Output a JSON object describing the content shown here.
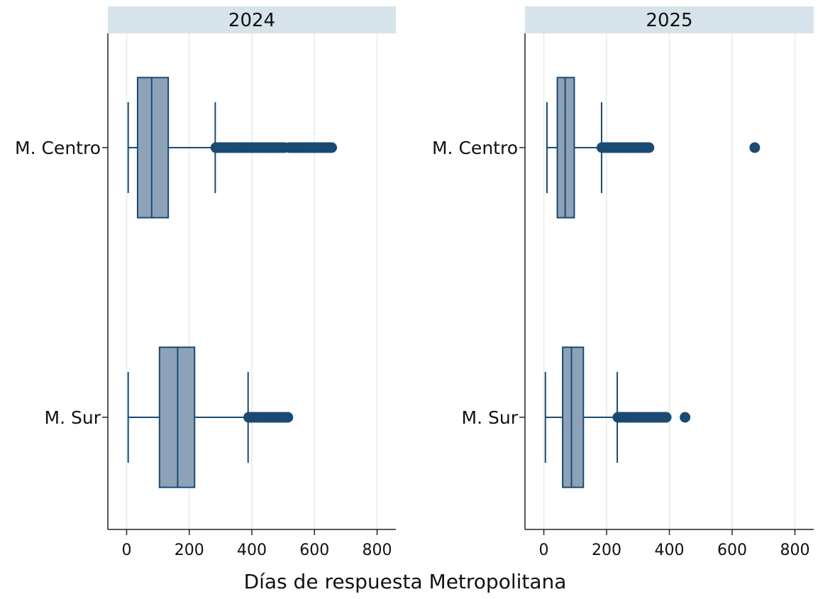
{
  "chart_data": {
    "type": "boxplot",
    "xlabel": "Días de respuesta Metropolitana",
    "x_ticks": [
      0,
      200,
      400,
      600,
      800
    ],
    "xlim": [
      -60,
      860
    ],
    "grid": "vertical",
    "categories": [
      "M. Centro",
      "M. Sur"
    ],
    "colors": {
      "box_fill": "#8da2b8",
      "stroke": "#1a4a72",
      "outlier": "#1a4a72",
      "strip": "#d6e3ea",
      "grid": "#e3ecec",
      "axis": "#222222"
    },
    "panels": [
      {
        "title": "2024",
        "boxes": [
          {
            "category": "M. Centro",
            "whisker_low": 5,
            "q1": 35,
            "median": 80,
            "q3": 133,
            "whisker_high": 283,
            "outliers": [
              285,
              290,
              295,
              300,
              305,
              310,
              315,
              320,
              325,
              330,
              335,
              340,
              345,
              350,
              355,
              360,
              365,
              370,
              375,
              380,
              385,
              390,
              395,
              400,
              405,
              410,
              415,
              420,
              425,
              430,
              435,
              440,
              445,
              450,
              455,
              460,
              465,
              470,
              475,
              480,
              485,
              490,
              495,
              500,
              505,
              520,
              525,
              530,
              535,
              540,
              545,
              550,
              555,
              560,
              565,
              570,
              575,
              580,
              585,
              590,
              595,
              600,
              605,
              610,
              615,
              620,
              625,
              630,
              635,
              640,
              645,
              650,
              655
            ]
          },
          {
            "category": "M. Sur",
            "whisker_low": 5,
            "q1": 105,
            "median": 163,
            "q3": 217,
            "whisker_high": 388,
            "outliers": [
              390,
              395,
              400,
              405,
              410,
              415,
              420,
              425,
              430,
              435,
              440,
              445,
              450,
              455,
              460,
              465,
              470,
              475,
              480,
              485,
              490,
              495,
              500,
              505,
              510,
              515
            ]
          }
        ]
      },
      {
        "title": "2025",
        "boxes": [
          {
            "category": "M. Centro",
            "whisker_low": 10,
            "q1": 43,
            "median": 68,
            "q3": 97,
            "whisker_high": 184,
            "outliers": [
              185,
              190,
              195,
              200,
              205,
              210,
              215,
              220,
              225,
              230,
              235,
              240,
              245,
              250,
              255,
              260,
              265,
              270,
              275,
              280,
              285,
              290,
              295,
              300,
              305,
              310,
              315,
              320,
              325,
              330,
              335,
              672
            ]
          },
          {
            "category": "M. Sur",
            "whisker_low": 5,
            "q1": 60,
            "median": 88,
            "q3": 126,
            "whisker_high": 234,
            "outliers": [
              236,
              240,
              245,
              250,
              255,
              260,
              265,
              270,
              275,
              280,
              285,
              290,
              295,
              300,
              305,
              310,
              315,
              320,
              325,
              330,
              335,
              340,
              345,
              350,
              355,
              360,
              365,
              370,
              375,
              380,
              385,
              390,
              450
            ]
          }
        ]
      }
    ]
  }
}
